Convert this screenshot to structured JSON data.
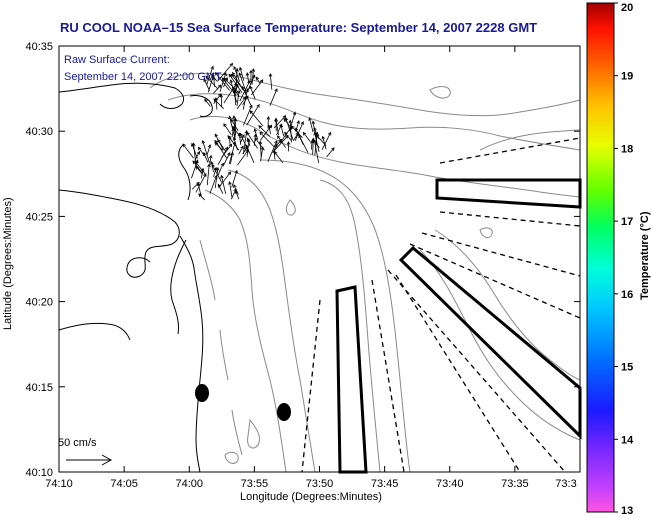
{
  "title": "RU COOL  NOAA–15  Sea Surface Temperature:  September 14, 2007 2228 GMT",
  "annotation": {
    "line1": "Raw Surface Current:",
    "line2": "September 14, 2007 22:00 GMT"
  },
  "scale_label": "50 cm/s",
  "axes": {
    "xlabel": "Longitude (Degrees:Minutes)",
    "ylabel": "Latitude (Degrees:Minutes)",
    "x_ticks": [
      "74:10",
      "74:05",
      "74:00",
      "73:55",
      "73:50",
      "73:45",
      "73:40",
      "73:35",
      "73:3"
    ],
    "y_ticks": [
      "40:35",
      "40:30",
      "40:25",
      "40:20",
      "40:15",
      "40:10"
    ]
  },
  "colorbar": {
    "label": "Temperature (°C)",
    "min": 13,
    "max": 20,
    "ticks": [
      "20",
      "19",
      "18",
      "17",
      "16",
      "15",
      "14",
      "13"
    ]
  },
  "colors": {
    "title": "#1a1a9a",
    "contour": "#8a8a8a",
    "frame": "#000000"
  }
}
